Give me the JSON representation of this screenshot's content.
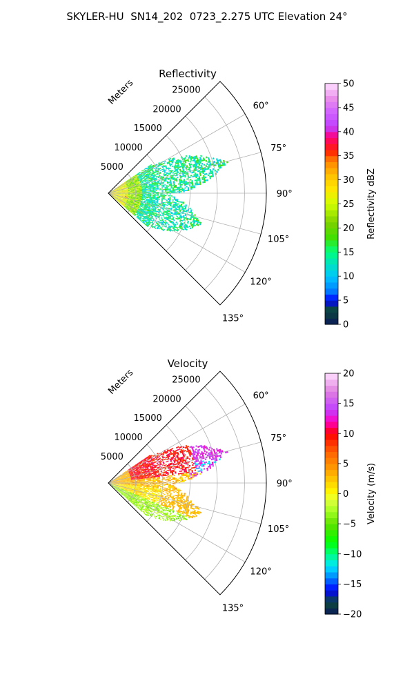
{
  "figure_title": "SKYLER-HU  SN14_202  0723_2.275 UTC Elevation 24°",
  "colors": {
    "axis": "#000000",
    "grid": "#b0b0b0"
  },
  "chart_data": [
    {
      "type": "heatmap",
      "subtype": "polar-sector",
      "title": "Reflectivity",
      "radial_label": "Meters",
      "theta_range_deg": [
        45,
        135
      ],
      "theta_ticks": [
        60,
        75,
        90,
        105,
        120,
        135
      ],
      "theta_tick_labels": [
        "60°",
        "75°",
        "90°",
        "105°",
        "120°",
        "135°"
      ],
      "r_range": [
        0,
        29000
      ],
      "r_ticks": [
        5000,
        10000,
        15000,
        20000,
        25000
      ],
      "r_tick_labels": [
        "5000",
        "10000",
        "15000",
        "20000",
        "25000"
      ],
      "grid": true,
      "colorbar": {
        "label": "Reflectivity dBZ",
        "range": [
          0,
          50
        ],
        "ticks": [
          0,
          5,
          10,
          15,
          20,
          25,
          30,
          35,
          40,
          45,
          50
        ],
        "tick_labels": [
          "0",
          "5",
          "10",
          "15",
          "20",
          "25",
          "30",
          "35",
          "40",
          "45",
          "50"
        ],
        "colormap": "pyart_NWSRef",
        "color_stops": [
          [
            0,
            "#0a1a5a"
          ],
          [
            3,
            "#0d4a3a"
          ],
          [
            5,
            "#0000ff"
          ],
          [
            7,
            "#0080ff"
          ],
          [
            10,
            "#00c8ff"
          ],
          [
            13,
            "#00e6b4"
          ],
          [
            15,
            "#00ff80"
          ],
          [
            18,
            "#40e000"
          ],
          [
            21,
            "#7ad000"
          ],
          [
            25,
            "#d0ff00"
          ],
          [
            28,
            "#ffe800"
          ],
          [
            31,
            "#ffc000"
          ],
          [
            34,
            "#ff8000"
          ],
          [
            36,
            "#ff2000"
          ],
          [
            39,
            "#ff0080"
          ],
          [
            41,
            "#c040ff"
          ],
          [
            44,
            "#d060ff"
          ],
          [
            47,
            "#ea90ea"
          ],
          [
            50,
            "#ffe0ff"
          ]
        ]
      },
      "echo_summary": {
        "extent_theta_deg": [
          56,
          130
        ],
        "max_range_m": 22500,
        "near_field_dbz": "25-30",
        "far_field_dbz": "10-18",
        "max_dbz": 38
      }
    },
    {
      "type": "heatmap",
      "subtype": "polar-sector",
      "title": "Velocity",
      "radial_label": "Meters",
      "theta_range_deg": [
        45,
        135
      ],
      "theta_ticks": [
        60,
        75,
        90,
        105,
        120,
        135
      ],
      "theta_tick_labels": [
        "60°",
        "75°",
        "90°",
        "105°",
        "120°",
        "135°"
      ],
      "r_range": [
        0,
        29000
      ],
      "r_ticks": [
        5000,
        10000,
        15000,
        20000,
        25000
      ],
      "r_tick_labels": [
        "5000",
        "10000",
        "15000",
        "20000",
        "25000"
      ],
      "grid": true,
      "colorbar": {
        "label": "Velocity (m/s)",
        "range": [
          -20,
          20
        ],
        "ticks": [
          -20,
          -15,
          -10,
          -5,
          0,
          5,
          10,
          15,
          20
        ],
        "tick_labels": [
          "−20",
          "−15",
          "−10",
          "−5",
          "0",
          "5",
          "10",
          "15",
          "20"
        ],
        "colormap": "pyart_BuDRd18",
        "color_stops": [
          [
            -20,
            "#0a1a5a"
          ],
          [
            -18,
            "#0d4a3a"
          ],
          [
            -16,
            "#0000ff"
          ],
          [
            -14,
            "#0080ff"
          ],
          [
            -12,
            "#00e6ff"
          ],
          [
            -10,
            "#00ff80"
          ],
          [
            -8,
            "#00ff00"
          ],
          [
            -5,
            "#60e000"
          ],
          [
            -3,
            "#a0ff20"
          ],
          [
            -1,
            "#e0ff40"
          ],
          [
            0,
            "#ffff00"
          ],
          [
            2,
            "#ffd000"
          ],
          [
            4,
            "#ffa000"
          ],
          [
            7,
            "#ff6000"
          ],
          [
            10,
            "#ff0000"
          ],
          [
            12,
            "#ff00c0"
          ],
          [
            14,
            "#c040ff"
          ],
          [
            17,
            "#e080e0"
          ],
          [
            20,
            "#ffe0ff"
          ]
        ]
      },
      "echo_summary": {
        "extent_theta_deg": [
          56,
          130
        ],
        "max_range_m": 22500,
        "north_sector_ms": "10 to 15",
        "south_sector_ms": "-5 to 0",
        "edge_cells_ms": "-12 to 14"
      }
    }
  ]
}
